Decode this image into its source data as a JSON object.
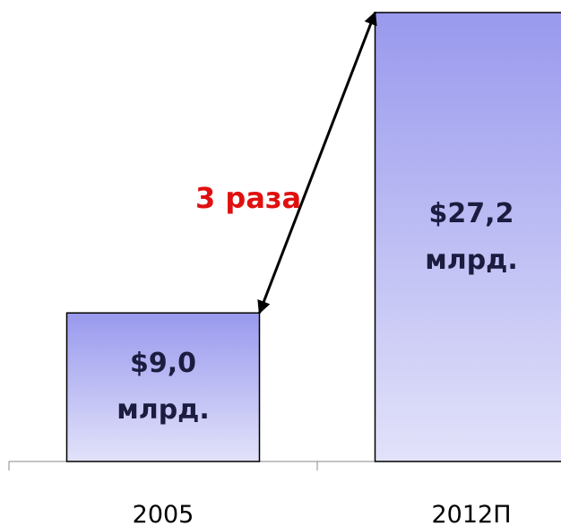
{
  "chart_data": {
    "type": "bar",
    "categories": [
      "2005",
      "2012П"
    ],
    "values": [
      9.0,
      27.2
    ],
    "value_labels": [
      "$9,0 млрд.",
      "$27,2 млрд."
    ],
    "color": "#9999ee",
    "annotation": "3 раза"
  }
}
